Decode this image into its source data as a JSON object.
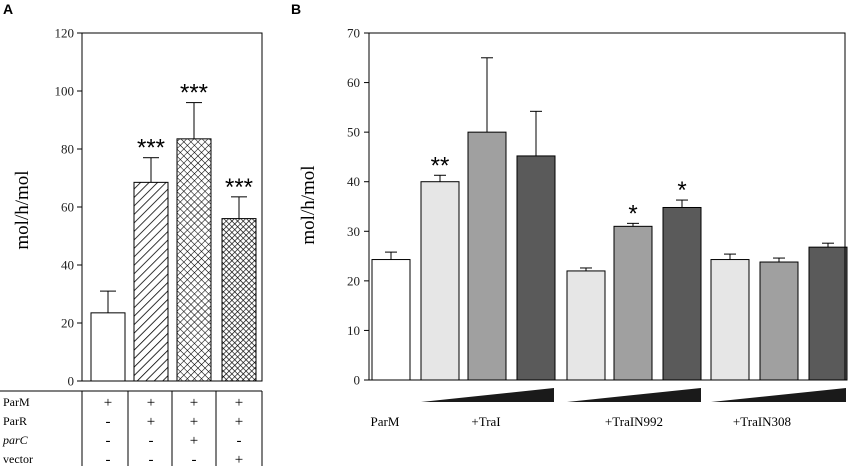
{
  "chart_data": [
    {
      "panel": "A",
      "type": "bar",
      "ylabel": "mol/h/mol",
      "ylim": [
        0,
        120
      ],
      "yticks": [
        0,
        20,
        40,
        60,
        80,
        100,
        120
      ],
      "bars": [
        {
          "value": 23.5,
          "error": 7.5,
          "pattern": "none",
          "significance": ""
        },
        {
          "value": 68.5,
          "error": 8.5,
          "pattern": "diagonal",
          "significance": "***"
        },
        {
          "value": 83.5,
          "error": 12.5,
          "pattern": "crosshatch",
          "significance": "***"
        },
        {
          "value": 56,
          "error": 7.5,
          "pattern": "dense-crosshatch",
          "significance": "***"
        }
      ],
      "table": {
        "rows": [
          {
            "label": "ParM",
            "values": [
              "+",
              "+",
              "+",
              "+"
            ]
          },
          {
            "label": "ParR",
            "values": [
              "-",
              "+",
              "+",
              "+"
            ]
          },
          {
            "label": "parC",
            "values": [
              "-",
              "-",
              "+",
              "-"
            ]
          },
          {
            "label": "vector",
            "values": [
              "-",
              "-",
              "-",
              "+"
            ]
          }
        ]
      }
    },
    {
      "panel": "B",
      "type": "bar",
      "ylabel": "mol/h/mol",
      "ylim": [
        0,
        70
      ],
      "yticks": [
        0,
        10,
        20,
        30,
        40,
        50,
        60,
        70
      ],
      "bars": [
        {
          "group": "ParM",
          "value": 24.3,
          "error": 1.5,
          "color": "#ffffff",
          "significance": ""
        },
        {
          "group": "+TraI",
          "value": 40,
          "error": 1.3,
          "color": "#e6e6e6",
          "significance": "**"
        },
        {
          "group": "+TraI",
          "value": 50,
          "error": 15,
          "color": "#a0a0a0",
          "significance": ""
        },
        {
          "group": "+TraI",
          "value": 45.2,
          "error": 9,
          "color": "#5a5a5a",
          "significance": ""
        },
        {
          "group": "+TraIN992",
          "value": 22,
          "error": 0.6,
          "color": "#e6e6e6",
          "significance": ""
        },
        {
          "group": "+TraIN992",
          "value": 31,
          "error": 0.6,
          "color": "#a0a0a0",
          "significance": "*"
        },
        {
          "group": "+TraIN992",
          "value": 34.8,
          "error": 1.5,
          "color": "#5a5a5a",
          "significance": "*"
        },
        {
          "group": "+TraIN308",
          "value": 24.3,
          "error": 1.1,
          "color": "#e6e6e6",
          "significance": ""
        },
        {
          "group": "+TraIN308",
          "value": 23.8,
          "error": 0.8,
          "color": "#a0a0a0",
          "significance": ""
        },
        {
          "group": "+TraIN308",
          "value": 26.8,
          "error": 0.8,
          "color": "#5a5a5a",
          "significance": ""
        }
      ],
      "group_labels": [
        "ParM",
        "+TraI",
        "+TraIN992",
        "+TraIN308"
      ]
    }
  ],
  "labels": {
    "panel_a": "A",
    "panel_b": "B"
  }
}
